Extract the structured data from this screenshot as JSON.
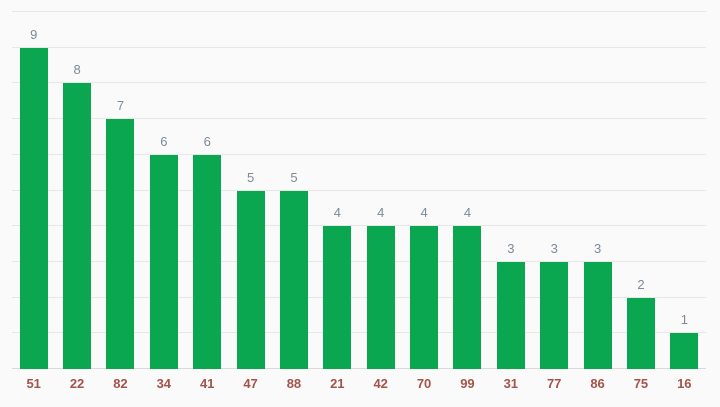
{
  "chart_data": {
    "type": "bar",
    "title": "",
    "xlabel": "",
    "ylabel": "",
    "categories": [
      "51",
      "22",
      "82",
      "34",
      "41",
      "47",
      "88",
      "21",
      "42",
      "70",
      "99",
      "31",
      "77",
      "86",
      "75",
      "16"
    ],
    "values": [
      9,
      8,
      7,
      6,
      6,
      5,
      5,
      4,
      4,
      4,
      4,
      3,
      3,
      3,
      2,
      1
    ],
    "value_labels": [
      "9",
      "8",
      "7",
      "6",
      "6",
      "5",
      "5",
      "4",
      "4",
      "4",
      "4",
      "3",
      "3",
      "3",
      "2",
      "1"
    ],
    "ylim": [
      0,
      10
    ],
    "gridline_interval": 1,
    "grid": "on",
    "legend_position": "none",
    "y_axis_tick_labels_visible": false,
    "colors": {
      "bar": "#0aa650",
      "value_label": "#7d8a99",
      "category_label": "#a3544a",
      "gridline": "#e7e7e7",
      "baseline": "#d9d9d9",
      "background": "#fafafa"
    }
  }
}
